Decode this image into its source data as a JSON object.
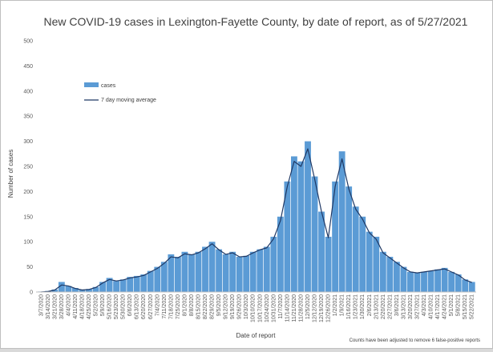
{
  "chart_data": {
    "type": "bar",
    "title": "New COVID-19 cases in Lexington-Fayette County, by date of report, as of 5/27/2021",
    "xlabel": "Date of report",
    "ylabel": "Number of cases",
    "ylim": [
      0,
      500
    ],
    "yticks": [
      0,
      50,
      100,
      150,
      200,
      250,
      300,
      350,
      400,
      450,
      500
    ],
    "grid": false,
    "legend_position": "upper-left",
    "note": "Counts have been adjusted to remove 6 false-positive reports",
    "colors": {
      "bars": "#5b9bd5",
      "line": "#1f3864"
    },
    "x_tick_labels": [
      "3/7/2020",
      "3/14/2020",
      "3/21/2020",
      "3/28/2020",
      "4/4/2020",
      "4/11/2020",
      "4/18/2020",
      "4/25/2020",
      "5/2/2020",
      "5/9/2020",
      "5/16/2020",
      "5/23/2020",
      "5/30/2020",
      "6/6/2020",
      "6/13/2020",
      "6/20/2020",
      "6/27/2020",
      "7/4/2020",
      "7/11/2020",
      "7/18/2020",
      "7/25/2020",
      "8/1/2020",
      "8/8/2020",
      "8/15/2020",
      "8/22/2020",
      "8/29/2020",
      "9/5/2020",
      "9/12/2020",
      "9/19/2020",
      "9/26/2020",
      "10/3/2020",
      "10/10/2020",
      "10/17/2020",
      "10/24/2020",
      "10/31/2020",
      "11/7/2020",
      "11/14/2020",
      "11/21/2020",
      "11/28/2020",
      "12/5/2020",
      "12/12/2020",
      "12/19/2020",
      "12/26/2020",
      "1/2/2021",
      "1/9/2021",
      "1/16/2021",
      "1/23/2021",
      "1/30/2021",
      "2/6/2021",
      "2/13/2021",
      "2/20/2021",
      "2/27/2021",
      "3/6/2021",
      "3/13/2021",
      "3/20/2021",
      "3/27/2021",
      "4/3/2021",
      "4/10/2021",
      "4/17/2021",
      "4/24/2021",
      "5/1/2021",
      "5/8/2021",
      "5/15/2021",
      "5/22/2021"
    ],
    "series": [
      {
        "name": "cases",
        "type": "bar",
        "period": "weekly (approximate, one value per week)",
        "x": [
          "3/7/2020",
          "3/14/2020",
          "3/21/2020",
          "3/28/2020",
          "4/4/2020",
          "4/11/2020",
          "4/18/2020",
          "4/25/2020",
          "5/2/2020",
          "5/9/2020",
          "5/16/2020",
          "5/23/2020",
          "5/30/2020",
          "6/6/2020",
          "6/13/2020",
          "6/20/2020",
          "6/27/2020",
          "7/4/2020",
          "7/11/2020",
          "7/18/2020",
          "7/25/2020",
          "8/1/2020",
          "8/8/2020",
          "8/15/2020",
          "8/22/2020",
          "8/29/2020",
          "9/5/2020",
          "9/12/2020",
          "9/19/2020",
          "9/26/2020",
          "10/3/2020",
          "10/10/2020",
          "10/17/2020",
          "10/24/2020",
          "10/31/2020",
          "11/7/2020",
          "11/14/2020",
          "11/21/2020",
          "11/28/2020",
          "12/5/2020",
          "12/12/2020",
          "12/19/2020",
          "12/26/2020",
          "1/2/2021",
          "1/9/2021",
          "1/16/2021",
          "1/23/2021",
          "1/30/2021",
          "2/6/2021",
          "2/13/2021",
          "2/20/2021",
          "2/27/2021",
          "3/6/2021",
          "3/13/2021",
          "3/20/2021",
          "3/27/2021",
          "4/3/2021",
          "4/10/2021",
          "4/17/2021",
          "4/24/2021",
          "5/1/2021",
          "5/8/2021",
          "5/15/2021",
          "5/22/2021"
        ],
        "values": [
          1,
          2,
          5,
          20,
          12,
          8,
          5,
          6,
          10,
          20,
          28,
          22,
          25,
          30,
          32,
          35,
          42,
          50,
          60,
          75,
          70,
          80,
          75,
          80,
          90,
          100,
          85,
          75,
          80,
          70,
          72,
          80,
          85,
          90,
          110,
          150,
          220,
          270,
          260,
          300,
          230,
          160,
          110,
          220,
          280,
          210,
          170,
          150,
          120,
          110,
          80,
          70,
          60,
          50,
          40,
          38,
          40,
          42,
          45,
          48,
          40,
          35,
          25,
          20
        ]
      },
      {
        "name": "7 day moving average",
        "type": "line",
        "x": [
          "3/7/2020",
          "3/14/2020",
          "3/21/2020",
          "3/28/2020",
          "4/4/2020",
          "4/11/2020",
          "4/18/2020",
          "4/25/2020",
          "5/2/2020",
          "5/9/2020",
          "5/16/2020",
          "5/23/2020",
          "5/30/2020",
          "6/6/2020",
          "6/13/2020",
          "6/20/2020",
          "6/27/2020",
          "7/4/2020",
          "7/11/2020",
          "7/18/2020",
          "7/25/2020",
          "8/1/2020",
          "8/8/2020",
          "8/15/2020",
          "8/22/2020",
          "8/29/2020",
          "9/5/2020",
          "9/12/2020",
          "9/19/2020",
          "9/26/2020",
          "10/3/2020",
          "10/10/2020",
          "10/17/2020",
          "10/24/2020",
          "10/31/2020",
          "11/7/2020",
          "11/14/2020",
          "11/21/2020",
          "11/28/2020",
          "12/5/2020",
          "12/12/2020",
          "12/19/2020",
          "12/26/2020",
          "1/2/2021",
          "1/9/2021",
          "1/16/2021",
          "1/23/2021",
          "1/30/2021",
          "2/6/2021",
          "2/13/2021",
          "2/20/2021",
          "2/27/2021",
          "3/6/2021",
          "3/13/2021",
          "3/20/2021",
          "3/27/2021",
          "4/3/2021",
          "4/10/2021",
          "4/17/2021",
          "4/24/2021",
          "5/1/2021",
          "5/8/2021",
          "5/15/2021",
          "5/22/2021"
        ],
        "values": [
          0,
          1,
          4,
          14,
          12,
          7,
          4,
          5,
          9,
          18,
          25,
          22,
          24,
          28,
          30,
          33,
          40,
          47,
          57,
          70,
          68,
          76,
          74,
          78,
          86,
          96,
          84,
          75,
          78,
          70,
          71,
          78,
          84,
          88,
          106,
          142,
          210,
          260,
          250,
          285,
          225,
          160,
          108,
          210,
          265,
          205,
          165,
          145,
          118,
          105,
          78,
          68,
          58,
          48,
          40,
          38,
          40,
          42,
          44,
          46,
          40,
          34,
          24,
          19
        ]
      }
    ]
  }
}
